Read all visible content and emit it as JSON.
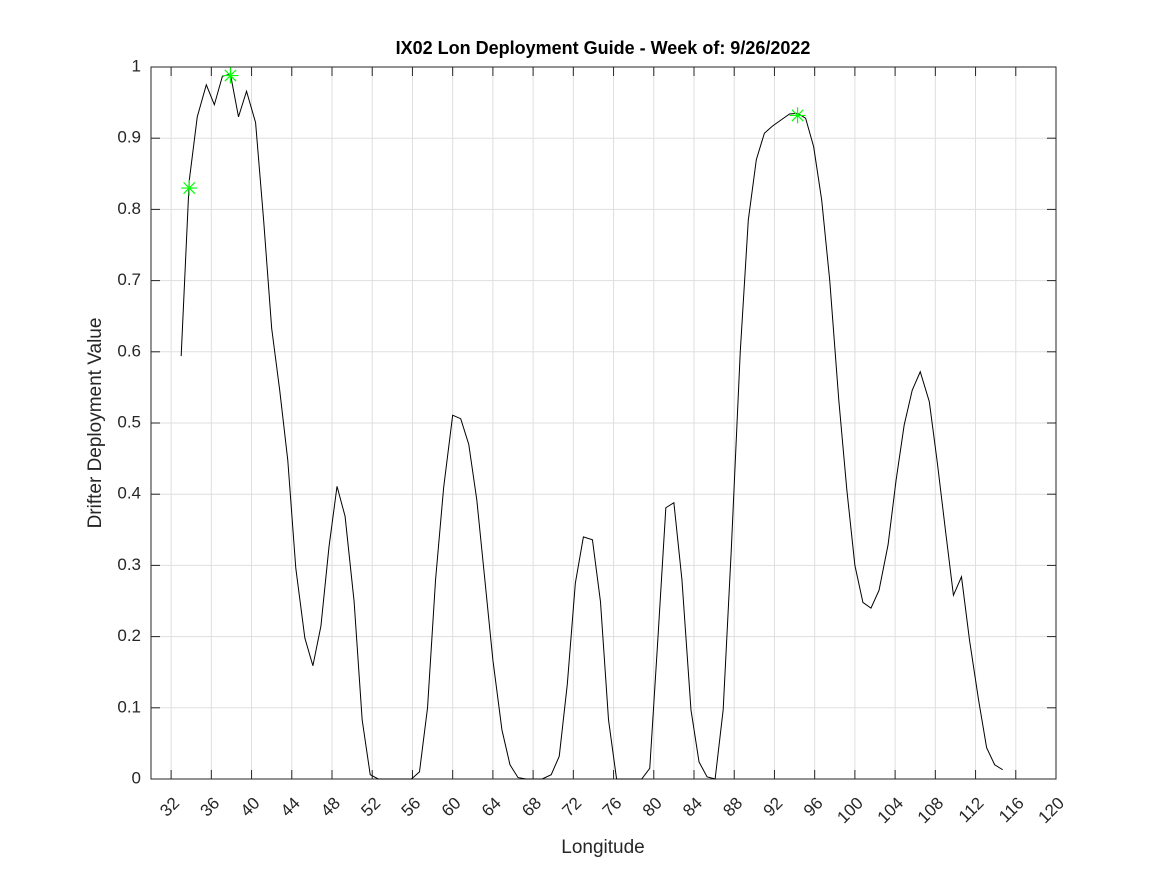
{
  "chart_data": {
    "type": "line",
    "title": "IX02 Lon Deployment Guide - Week of: 9/26/2022",
    "xlabel": "Longitude",
    "ylabel": "Drifter Deployment Value",
    "xlim": [
      30,
      120
    ],
    "xticks": [
      32,
      36,
      40,
      44,
      48,
      52,
      56,
      60,
      64,
      68,
      72,
      76,
      80,
      84,
      88,
      92,
      96,
      100,
      104,
      108,
      112,
      116,
      120
    ],
    "ylim": [
      0,
      1
    ],
    "yticks": [
      0,
      0.1,
      0.2,
      0.3,
      0.4,
      0.5,
      0.6,
      0.7,
      0.8,
      0.9,
      1
    ],
    "grid": true,
    "series": [
      {
        "color": "#000000",
        "marker": "none",
        "x": [
          33.0,
          33.8,
          34.6,
          35.5,
          36.3,
          37.1,
          37.9,
          38.7,
          39.5,
          40.4,
          41.2,
          42.0,
          42.8,
          43.6,
          44.4,
          45.3,
          46.1,
          46.9,
          47.7,
          48.5,
          49.3,
          50.2,
          51.0,
          51.8,
          52.6,
          53.4,
          54.2,
          55.1,
          55.9,
          56.7,
          57.5,
          58.3,
          59.1,
          60.0,
          60.8,
          61.6,
          62.4,
          63.2,
          64.0,
          64.9,
          65.7,
          66.5,
          67.3,
          68.1,
          68.9,
          69.8,
          70.6,
          71.4,
          72.2,
          73.0,
          73.9,
          74.7,
          75.5,
          76.3,
          77.1,
          77.9,
          78.8,
          79.6,
          80.4,
          81.2,
          82.0,
          82.8,
          83.7,
          84.5,
          85.3,
          86.1,
          86.9,
          87.7,
          88.6,
          89.4,
          90.2,
          91.0,
          91.8,
          92.6,
          93.5,
          94.3,
          95.1,
          95.9,
          96.7,
          97.5,
          98.4,
          99.2,
          100.0,
          100.8,
          101.6,
          102.4,
          103.3,
          104.1,
          104.9,
          105.7,
          106.5,
          107.4,
          108.2,
          109.0,
          109.8,
          110.6,
          111.4,
          112.3,
          113.1,
          113.9,
          114.7
        ],
        "values": [
          0.594,
          0.84,
          0.93,
          0.975,
          0.947,
          0.987,
          0.99,
          0.93,
          0.966,
          0.922,
          0.785,
          0.633,
          0.546,
          0.448,
          0.296,
          0.198,
          0.159,
          0.215,
          0.326,
          0.411,
          0.369,
          0.249,
          0.083,
          0.006,
          0,
          0,
          0,
          0,
          0,
          0.01,
          0.1,
          0.28,
          0.409,
          0.511,
          0.506,
          0.47,
          0.392,
          0.28,
          0.167,
          0.069,
          0.02,
          0.002,
          0,
          0,
          0,
          0.006,
          0.032,
          0.133,
          0.275,
          0.34,
          0.336,
          0.249,
          0.083,
          0,
          0,
          0,
          0,
          0.015,
          0.195,
          0.381,
          0.388,
          0.28,
          0.097,
          0.024,
          0.003,
          0,
          0.097,
          0.32,
          0.6,
          0.785,
          0.87,
          0.907,
          0.917,
          0.925,
          0.934,
          0.935,
          0.928,
          0.888,
          0.813,
          0.7,
          0.532,
          0.406,
          0.3,
          0.248,
          0.24,
          0.265,
          0.329,
          0.42,
          0.497,
          0.546,
          0.572,
          0.53,
          0.444,
          0.35,
          0.258,
          0.284,
          0.195,
          0.111,
          0.044,
          0.02,
          0.013
        ]
      },
      {
        "color": "#00ff00",
        "marker": "*",
        "x": [
          33.8,
          37.9,
          94.3
        ],
        "values": [
          0.83,
          0.988,
          0.932
        ]
      }
    ]
  }
}
